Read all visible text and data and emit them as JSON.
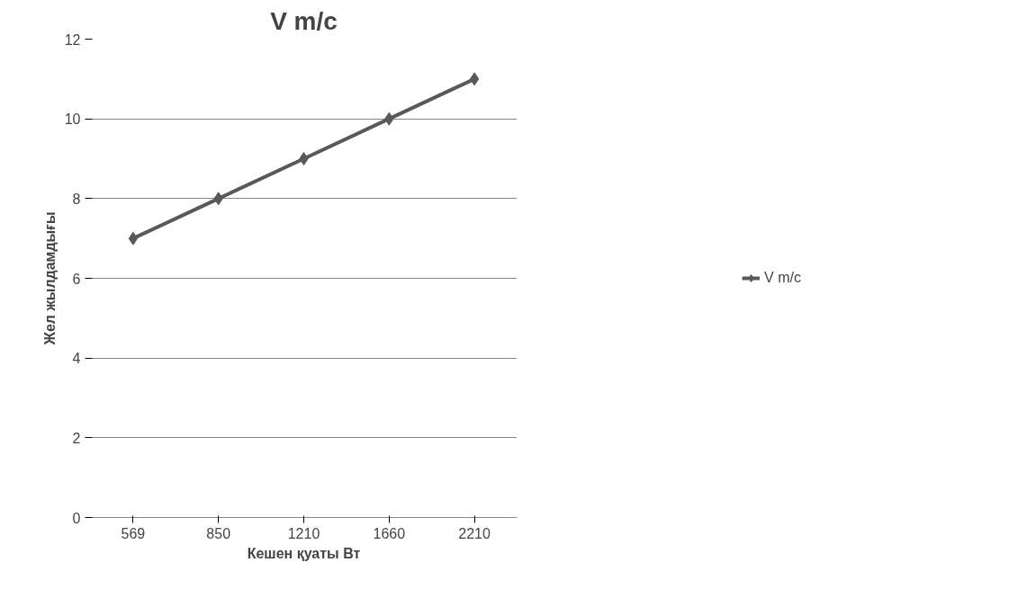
{
  "chart_data": {
    "type": "line",
    "title": "V m/c",
    "xlabel": "Кешен қуаты Вт",
    "ylabel": "Жел жылдамдығы",
    "categories": [
      "569",
      "850",
      "1210",
      "1660",
      "2210"
    ],
    "series": [
      {
        "name": "V m/c",
        "color": "#595959",
        "values": [
          7,
          8,
          9,
          10,
          11
        ]
      }
    ],
    "ylim": [
      0,
      12
    ],
    "yticks": [
      0,
      2,
      4,
      6,
      8,
      10,
      12
    ],
    "grid": "y",
    "legend": "right",
    "marker": "diamond",
    "line_style": "solid"
  }
}
